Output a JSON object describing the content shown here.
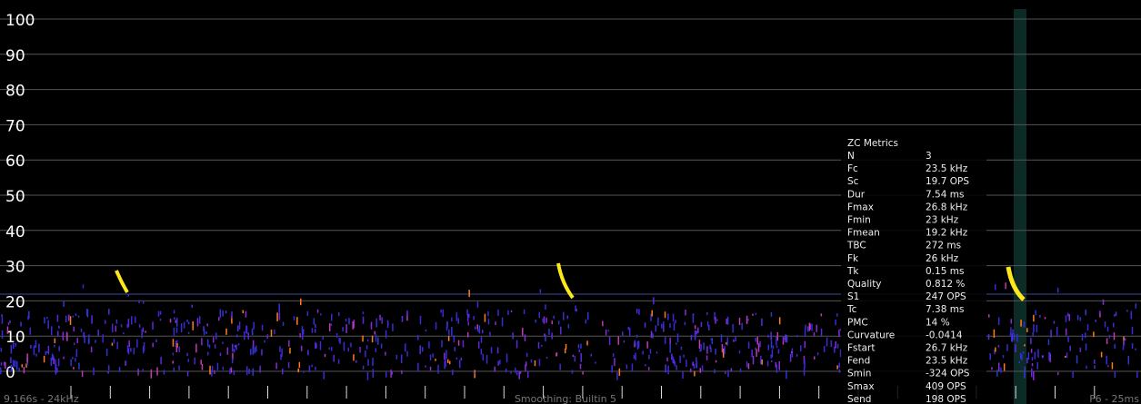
{
  "y_axis": {
    "ylim": [
      0,
      100
    ],
    "yticks": [
      0,
      10,
      20,
      30,
      40,
      50,
      60,
      70,
      80,
      90,
      100
    ]
  },
  "footer": {
    "left": "9.166s - 24kHz",
    "center": "Smoothing: Builtin 5",
    "right": "F6 - 25ms"
  },
  "metrics": {
    "title": "ZC Metrics",
    "rows": [
      [
        "N",
        "3"
      ],
      [
        "Fc",
        "23.5 kHz"
      ],
      [
        "Sc",
        "19.7 OPS"
      ],
      [
        "Dur",
        "7.54 ms"
      ],
      [
        "Fmax",
        "26.8 kHz"
      ],
      [
        "Fmin",
        "23 kHz"
      ],
      [
        "Fmean",
        "19.2 kHz"
      ],
      [
        "TBC",
        "272 ms"
      ],
      [
        "Fk",
        "26 kHz"
      ],
      [
        "Tk",
        "0.15 ms"
      ],
      [
        "Quality",
        "0.812 %"
      ],
      [
        "S1",
        "247 OPS"
      ],
      [
        "Tc",
        "7.38 ms"
      ],
      [
        "PMC",
        "14 %"
      ],
      [
        "Curvature",
        "-0.0414"
      ],
      [
        "Fstart",
        "26.7 kHz"
      ],
      [
        "Fend",
        "23.5 kHz"
      ],
      [
        "Smin",
        "-324 OPS"
      ],
      [
        "Smax",
        "409 OPS"
      ],
      [
        "Send",
        "198 OPS"
      ]
    ]
  }
}
